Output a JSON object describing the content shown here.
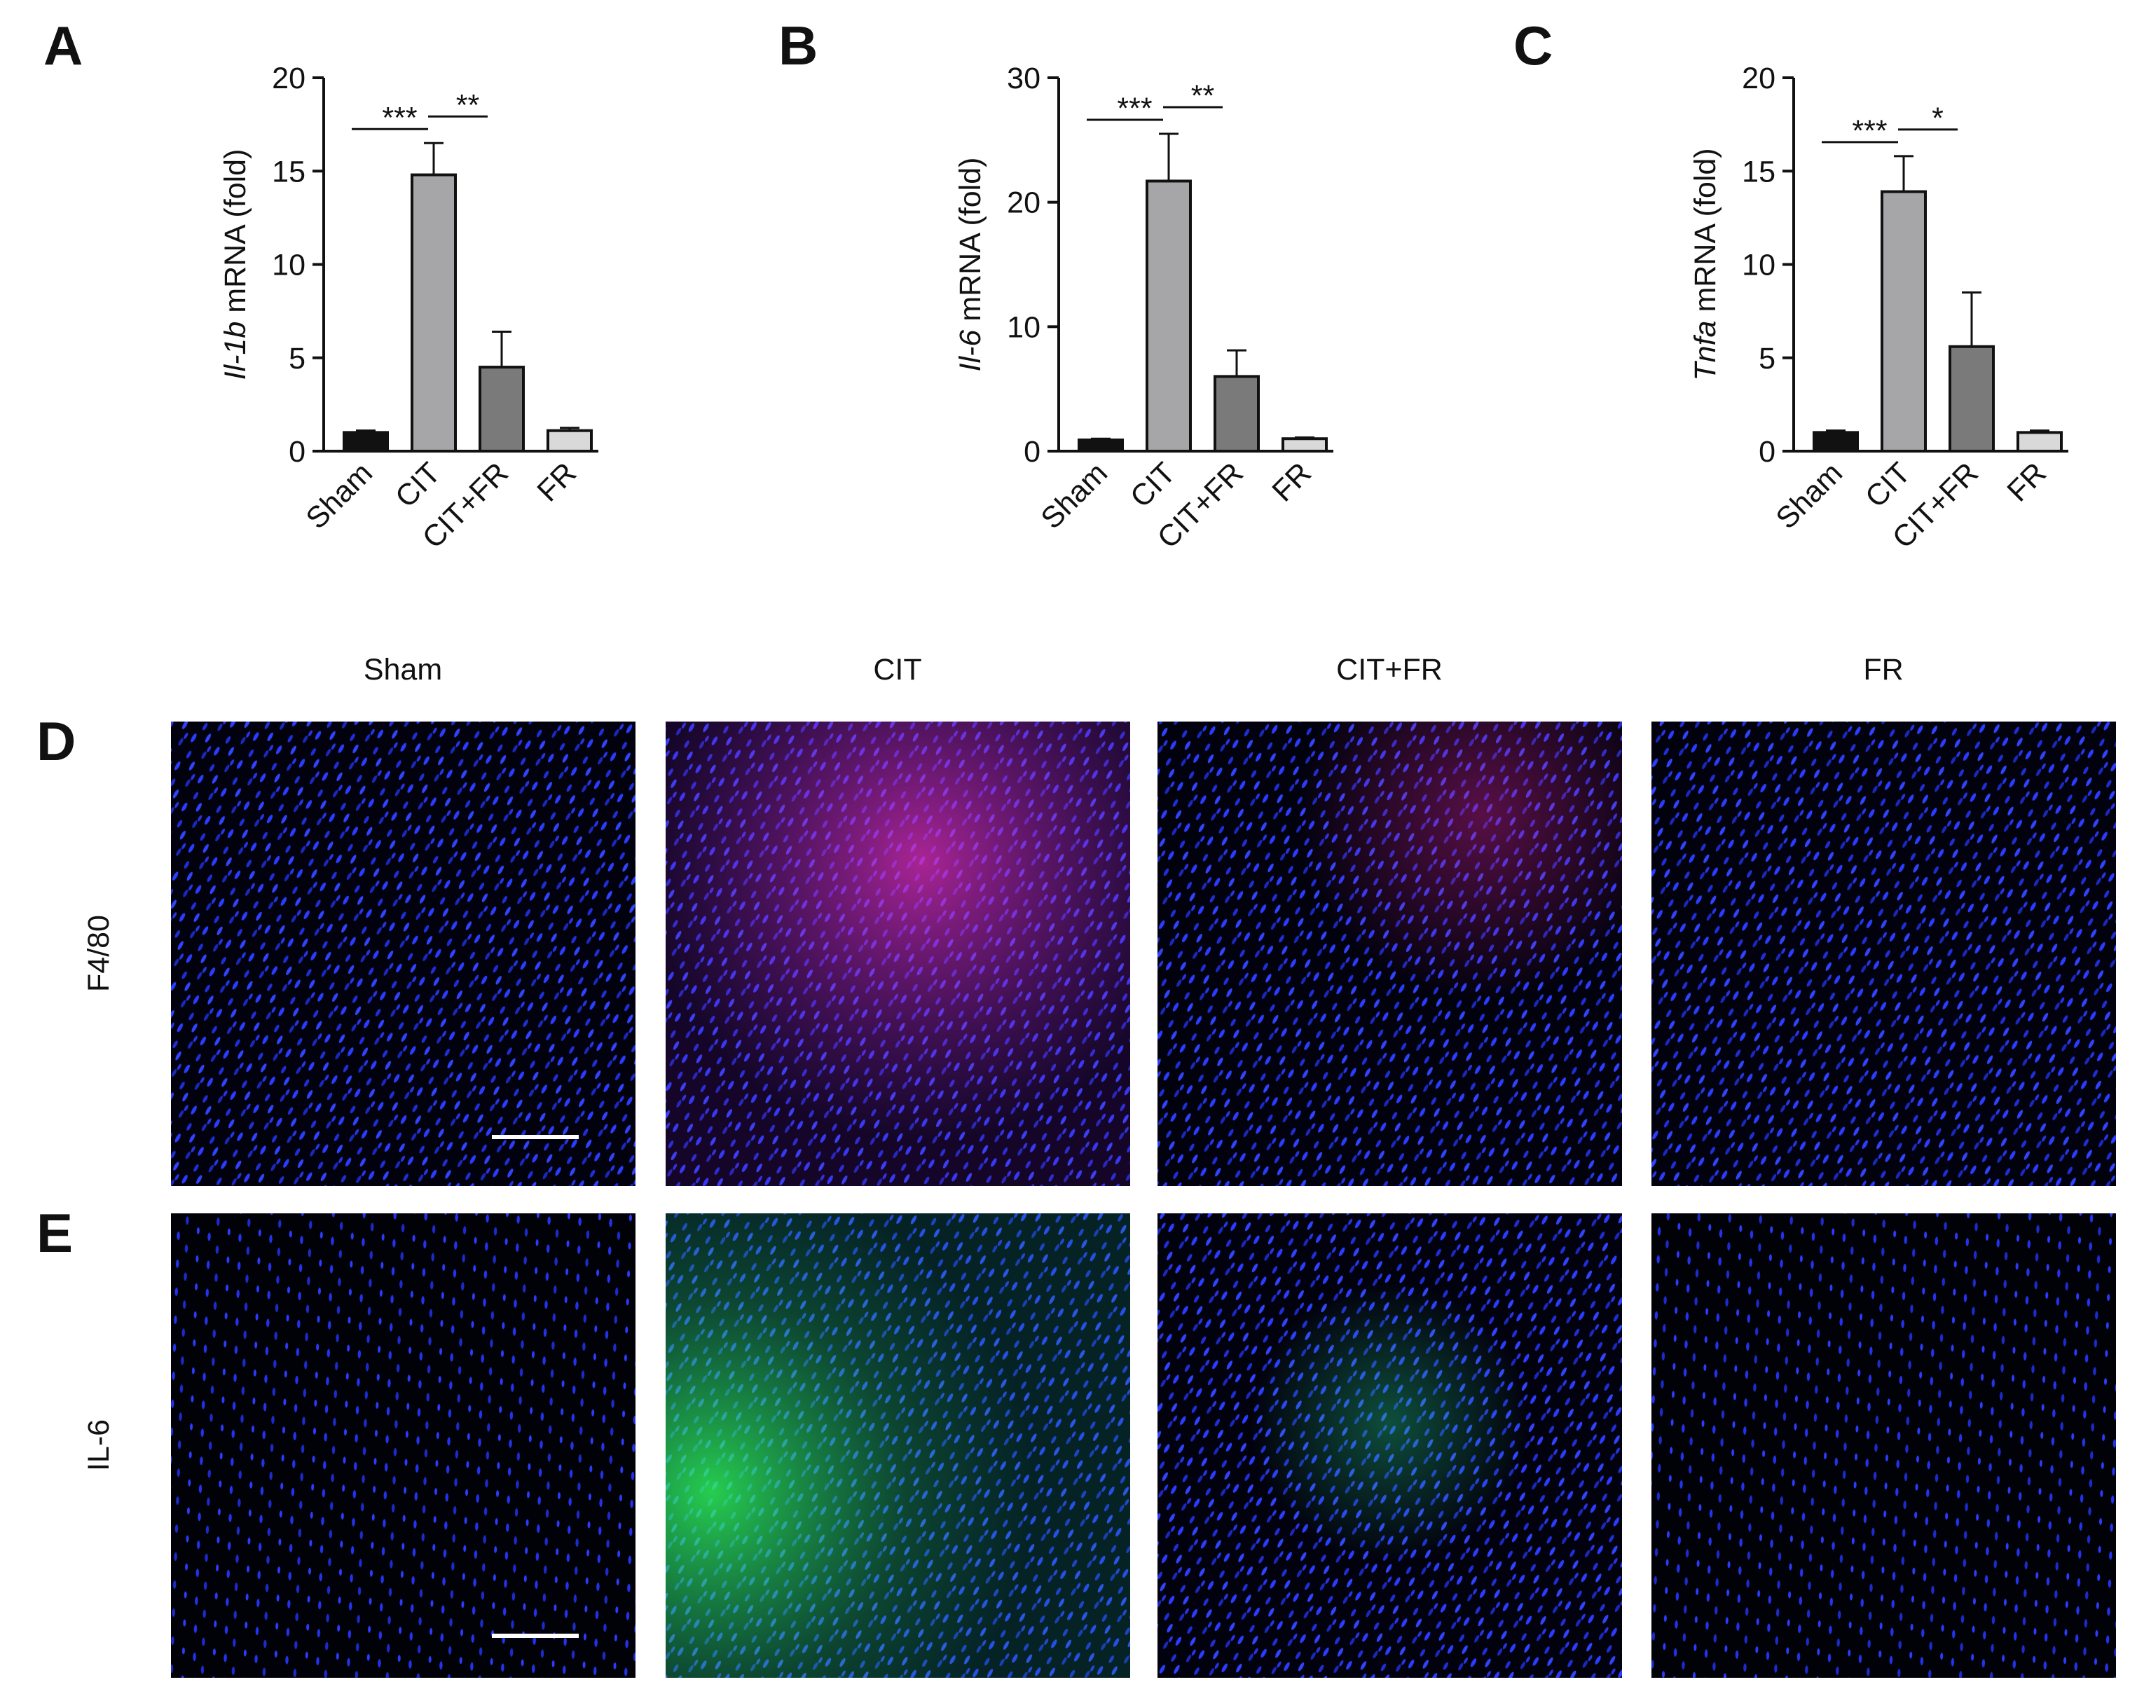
{
  "chart_data": [
    {
      "type": "bar",
      "panel_label": "A",
      "ylabel": {
        "gene": "Il-1b",
        "text": "mRNA (fold)"
      },
      "categories": [
        "Sham",
        "CIT",
        "CIT+FR",
        "FR"
      ],
      "series": [
        {
          "values": [
            1.0,
            14.8,
            4.5,
            1.1
          ],
          "errors": [
            0.1,
            1.7,
            1.9,
            0.15
          ],
          "colors": [
            "#111111",
            "#a6a6a8",
            "#7a7a7a",
            "#d9d9d9"
          ]
        }
      ],
      "ylim": [
        0,
        20
      ],
      "yticks": [
        0,
        5,
        10,
        15,
        20
      ],
      "annotations": [
        "***",
        "**"
      ]
    },
    {
      "type": "bar",
      "panel_label": "B",
      "ylabel": {
        "gene": "Il-6",
        "text": "mRNA (fold)"
      },
      "categories": [
        "Sham",
        "CIT",
        "CIT+FR",
        "FR"
      ],
      "series": [
        {
          "values": [
            0.9,
            21.7,
            6.0,
            1.0
          ],
          "errors": [
            0.1,
            3.8,
            2.1,
            0.1
          ],
          "colors": [
            "#111111",
            "#a6a6a8",
            "#7a7a7a",
            "#d9d9d9"
          ]
        }
      ],
      "ylim": [
        0,
        30
      ],
      "yticks": [
        0,
        10,
        20,
        30
      ],
      "annotations": [
        "***",
        "**"
      ]
    },
    {
      "type": "bar",
      "panel_label": "C",
      "ylabel": {
        "gene": "Tnfa",
        "text": "mRNA (fold)"
      },
      "categories": [
        "Sham",
        "CIT",
        "CIT+FR",
        "FR"
      ],
      "series": [
        {
          "values": [
            1.0,
            13.9,
            5.6,
            1.0
          ],
          "errors": [
            0.1,
            1.9,
            2.9,
            0.1
          ],
          "colors": [
            "#111111",
            "#a6a6a8",
            "#7a7a7a",
            "#d9d9d9"
          ]
        }
      ],
      "ylim": [
        0,
        20
      ],
      "yticks": [
        0,
        5,
        10,
        15,
        20
      ],
      "annotations": [
        "***",
        "*"
      ]
    }
  ],
  "images": {
    "columns": [
      "Sham",
      "CIT",
      "CIT+FR",
      "FR"
    ],
    "rows": [
      {
        "panel_label": "D",
        "label": "F4/80"
      },
      {
        "panel_label": "E",
        "label": "IL-6"
      }
    ]
  }
}
